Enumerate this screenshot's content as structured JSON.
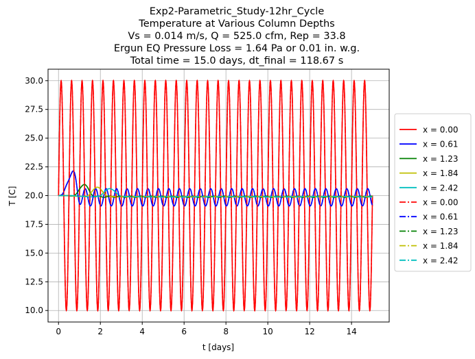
{
  "chart_data": {
    "type": "line",
    "title_lines": [
      "Exp2-Parametric_Study-12hr_Cycle",
      "Temperature at Various Column Depths",
      "Vs = 0.014 m/s, Q = 525.0 cfm, Rep = 33.8",
      "Ergun EQ Pressure Loss = 1.64 Pa or 0.01 in. w.g.",
      "Total time = 15.0 days, dt_final = 118.67 s"
    ],
    "xlabel": "t [days]",
    "ylabel": "T [C]",
    "xlim": [
      -0.5,
      15.8
    ],
    "ylim": [
      9.0,
      31.0
    ],
    "xticks": [
      0,
      2,
      4,
      6,
      8,
      10,
      12,
      14
    ],
    "xtick_labels": [
      "0",
      "2",
      "4",
      "6",
      "8",
      "10",
      "12",
      "14"
    ],
    "yticks": [
      10.0,
      12.5,
      15.0,
      17.5,
      20.0,
      22.5,
      25.0,
      27.5,
      30.0
    ],
    "ytick_labels": [
      "10.0",
      "12.5",
      "15.0",
      "17.5",
      "20.0",
      "22.5",
      "25.0",
      "27.5",
      "30.0"
    ],
    "grid": true,
    "legend_position": "right, outside plot",
    "series": [
      {
        "name": "x = 0.00",
        "color": "#ff0000",
        "dash": "solid",
        "kind": "inlet",
        "mean": 20.0,
        "amp": 10.0,
        "period_days": 0.5,
        "start": 0
      },
      {
        "name": "x = 0.61",
        "color": "#0000ff",
        "dash": "solid",
        "kind": "damped",
        "mean": 19.85,
        "amp": 0.75,
        "period_days": 0.5,
        "peak_t": 0.62,
        "peak_val": 22.4,
        "lag_days": 0.15
      },
      {
        "name": "x = 1.23",
        "color": "#008000",
        "dash": "solid",
        "kind": "damped",
        "mean": 19.9,
        "amp": 0.05,
        "period_days": 0.5,
        "peak_t": 1.22,
        "peak_val": 21.3,
        "lag_days": 0.3
      },
      {
        "name": "x = 1.84",
        "color": "#bfbf00",
        "dash": "solid",
        "kind": "damped",
        "mean": 19.9,
        "amp": 0.02,
        "period_days": 0.5,
        "peak_t": 1.85,
        "peak_val": 21.0,
        "lag_days": 0.45
      },
      {
        "name": "x = 2.42",
        "color": "#00bfbf",
        "dash": "solid",
        "kind": "damped",
        "mean": 19.9,
        "amp": 0.02,
        "period_days": 0.5,
        "peak_t": 2.45,
        "peak_val": 20.85,
        "lag_days": 0.6
      },
      {
        "name": "x = 0.00",
        "color": "#ff0000",
        "dash": "dashdot",
        "kind": "inlet",
        "mean": 20.0,
        "amp": 10.0,
        "period_days": 0.5,
        "start": 0
      },
      {
        "name": "x = 0.61",
        "color": "#0000ff",
        "dash": "dashdot",
        "kind": "damped",
        "mean": 19.85,
        "amp": 0.75,
        "period_days": 0.5,
        "peak_t": 0.62,
        "peak_val": 22.4,
        "lag_days": 0.15
      },
      {
        "name": "x = 1.23",
        "color": "#008000",
        "dash": "dashdot",
        "kind": "damped",
        "mean": 19.9,
        "amp": 0.05,
        "period_days": 0.5,
        "peak_t": 1.22,
        "peak_val": 21.3,
        "lag_days": 0.3
      },
      {
        "name": "x = 1.84",
        "color": "#bfbf00",
        "dash": "dashdot",
        "kind": "damped",
        "mean": 19.9,
        "amp": 0.02,
        "period_days": 0.5,
        "peak_t": 1.85,
        "peak_val": 21.0,
        "lag_days": 0.45
      },
      {
        "name": "x = 2.42",
        "color": "#00bfbf",
        "dash": "dashdot",
        "kind": "damped",
        "mean": 19.9,
        "amp": 0.02,
        "period_days": 0.5,
        "peak_t": 2.45,
        "peak_val": 20.85,
        "lag_days": 0.6
      }
    ],
    "t_start": 0,
    "t_end": 15.0,
    "initial_temp": 20.0
  }
}
